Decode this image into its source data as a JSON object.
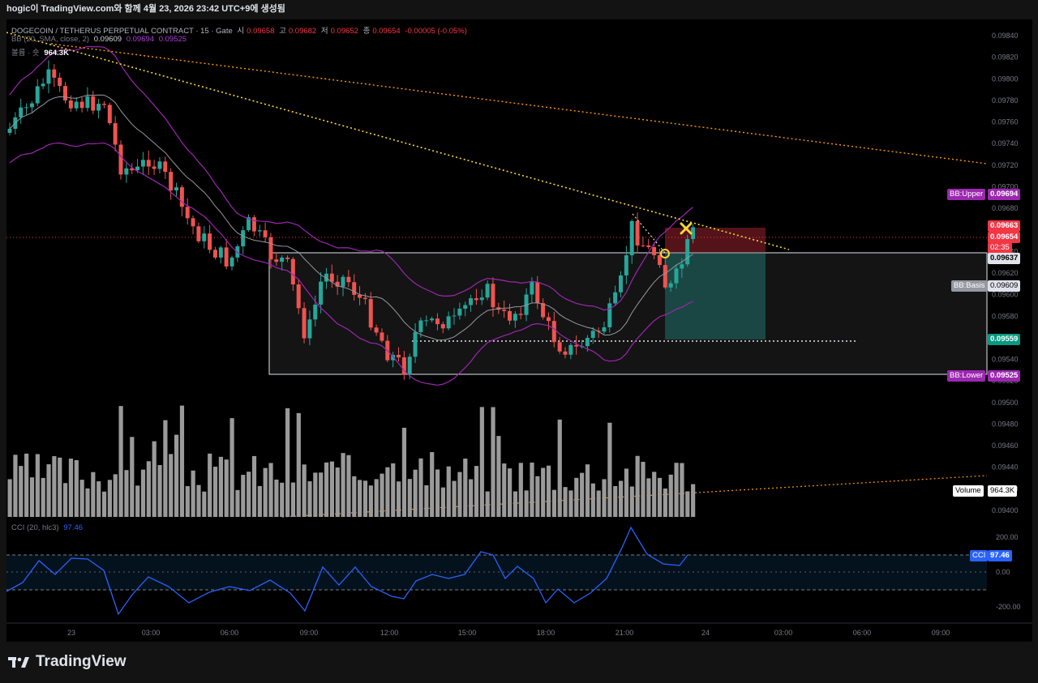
{
  "topbar": {
    "text": "hogic이 TradingView.com와 함께 4월 23, 2026 23:42 UTC+9에 생성됨"
  },
  "legend": {
    "symbol": "DOGECOIN / TETHERUS PERPETUAL CONTRACT · 15 · Gate",
    "o_label": "시",
    "o": "0.09658",
    "h_label": "고",
    "h": "0.09682",
    "l_label": "저",
    "l": "0.09652",
    "c_label": "종",
    "c": "0.09654",
    "chg": "-0.00005 (-0.05%)",
    "bb_label": "BB (20, SMA, close, 2)",
    "bb_basis": "0.09609",
    "bb_upper": "0.09694",
    "bb_lower": "0.09525",
    "vol_label": "볼륨 · 숏",
    "vol_value": "964.3K",
    "cci_label": "CCI (20, hlc3)",
    "cci_value": "97.46"
  },
  "price_axis": {
    "ticks": [
      "0.09840",
      "0.09820",
      "0.09800",
      "0.09780",
      "0.09760",
      "0.09740",
      "0.09720",
      "0.09700",
      "0.09680",
      "0.09660",
      "0.09640",
      "0.09620",
      "0.09600",
      "0.09580",
      "0.09560",
      "0.09540",
      "0.09520",
      "0.09500",
      "0.09480",
      "0.09460",
      "0.09440",
      "0.09420",
      "0.09400"
    ]
  },
  "cci_axis": {
    "ticks": [
      "200.00",
      "0.00",
      "-200.00"
    ]
  },
  "time_axis": {
    "ticks": [
      "23",
      "03:00",
      "06:00",
      "09:00",
      "12:00",
      "15:00",
      "18:00",
      "21:00",
      "24",
      "03:00",
      "06:00",
      "09:00"
    ]
  },
  "tags": {
    "bb_upper_label": "BB:Upper",
    "bb_upper_value": "0.09694",
    "price_1": "0.09663",
    "price_2": "0.09654",
    "countdown": "02:35",
    "price_3": "0.09637",
    "bb_basis_label": "BB:Basis",
    "bb_basis_value": "0.09609",
    "price_4": "0.09559",
    "bb_lower_label": "BB:Lower",
    "bb_lower_value": "0.09525",
    "volume_label": "Volume",
    "volume_value": "964.3K",
    "cci_label": "CCI",
    "cci_value": "97.46"
  },
  "colors": {
    "up": "#26a69a",
    "down": "#ef5350",
    "bb": "#9c27b0",
    "basis": "#9598a1",
    "trend": "#fdd835",
    "trend2": "#ff9800"
  },
  "footer": {
    "brand": "TradingView"
  }
}
